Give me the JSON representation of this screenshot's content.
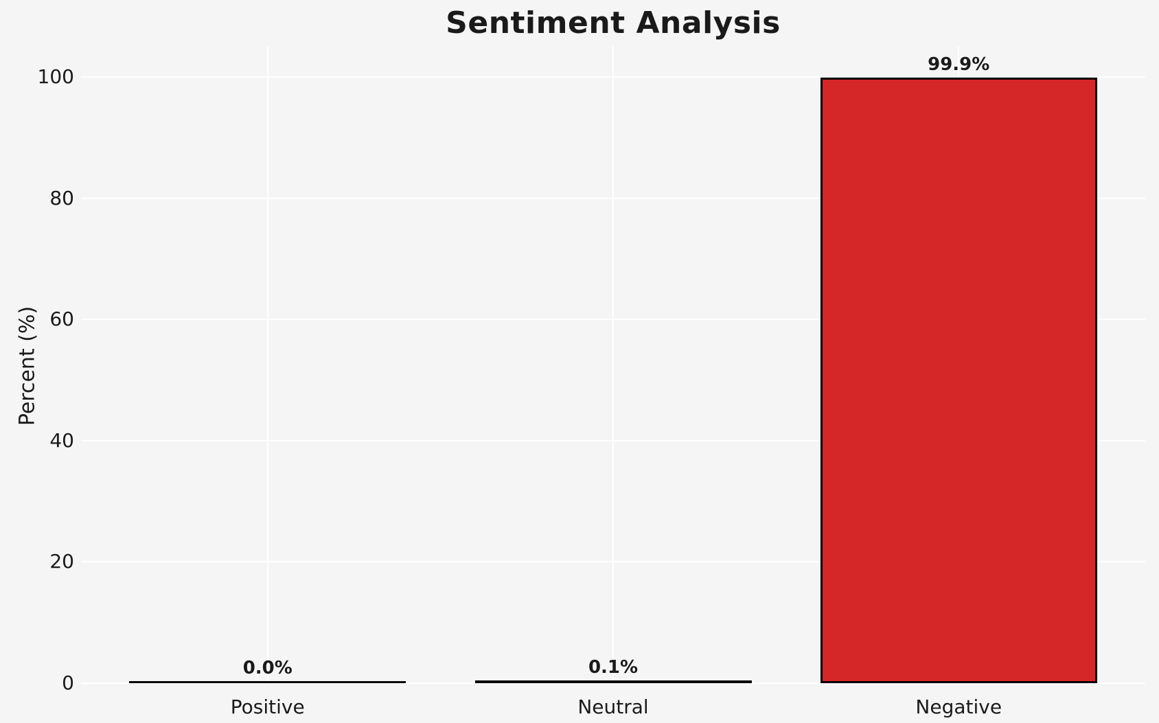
{
  "chart_data": {
    "type": "bar",
    "title": "Sentiment Analysis",
    "xlabel": "",
    "ylabel": "Percent (%)",
    "categories": [
      "Positive",
      "Neutral",
      "Negative"
    ],
    "values": [
      0.0,
      0.1,
      99.9
    ],
    "bar_value_labels": [
      "0.0%",
      "0.1%",
      "99.9%"
    ],
    "yticks": [
      0,
      20,
      40,
      60,
      80,
      100
    ],
    "ylim": [
      0,
      105
    ],
    "grid": true,
    "legend": false,
    "colors": {
      "figure_background": "#f5f5f5",
      "gridline": "#ffffff",
      "bar_fills": [
        null,
        null,
        "#d62728"
      ],
      "bar_edge": "#000000",
      "text": "#1a1a1a"
    }
  }
}
